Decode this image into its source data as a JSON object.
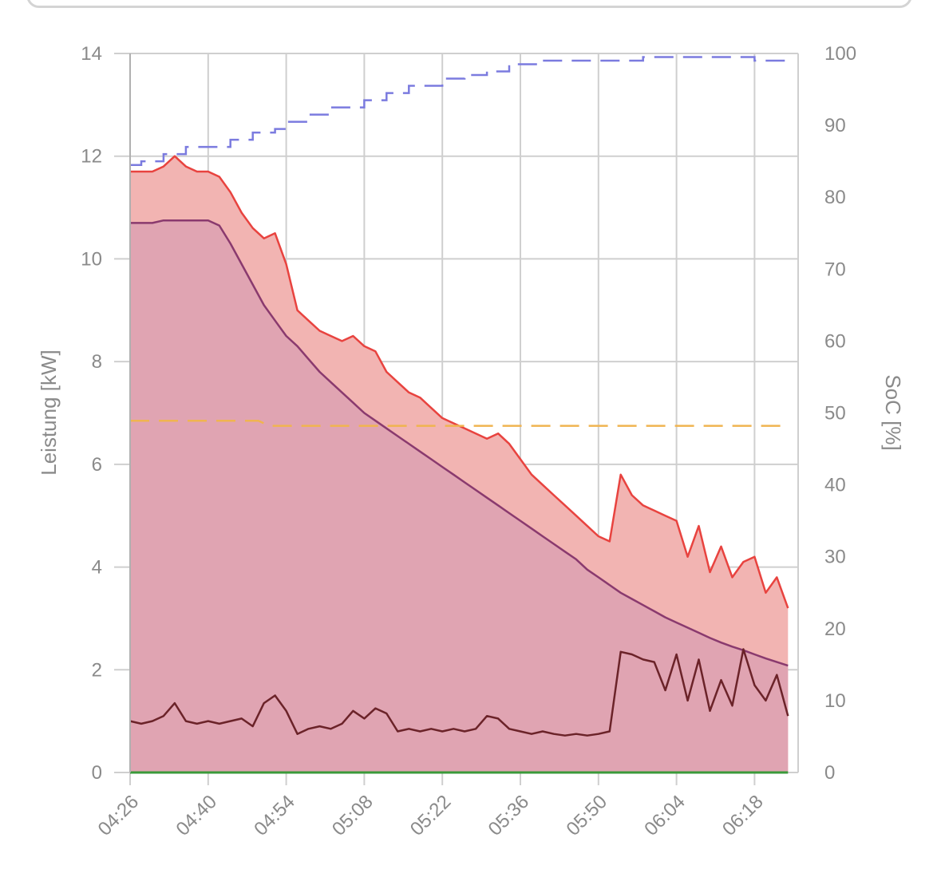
{
  "chart_data": {
    "type": "line",
    "title": "",
    "ylabel": "Leistung [kW]",
    "y2label": "SoC [%]",
    "ylim": [
      0,
      14
    ],
    "y2lim": [
      0,
      100
    ],
    "grid": true,
    "legend": "none",
    "x_ticks": [
      "04:26",
      "04:40",
      "04:54",
      "05:08",
      "05:22",
      "05:36",
      "05:50",
      "06:04",
      "06:18"
    ],
    "y_ticks": [
      "0",
      "2",
      "4",
      "6",
      "8",
      "10",
      "12",
      "14"
    ],
    "y2_ticks": [
      "0",
      "10",
      "20",
      "30",
      "40",
      "50",
      "60",
      "70",
      "80",
      "90",
      "100"
    ],
    "colors": {
      "total_line": "#e8433f",
      "total_fill": "#f2b4b2",
      "ev_line": "#8a3a6e",
      "ev_fill": "#e0a4b2",
      "base_line": "#6b2329",
      "soc_line": "#7b7bdf",
      "limit_line": "#f0b450",
      "zero_line": "#3a9a3a",
      "grid": "#cfcfcf"
    },
    "series": [
      {
        "key": "total",
        "axis": "left",
        "style": "area",
        "x": [
          "04:26",
          "04:28",
          "04:30",
          "04:32",
          "04:34",
          "04:36",
          "04:38",
          "04:40",
          "04:42",
          "04:44",
          "04:46",
          "04:48",
          "04:50",
          "04:52",
          "04:54",
          "04:56",
          "04:58",
          "05:00",
          "05:02",
          "05:04",
          "05:06",
          "05:08",
          "05:10",
          "05:12",
          "05:14",
          "05:16",
          "05:18",
          "05:20",
          "05:22",
          "05:24",
          "05:26",
          "05:28",
          "05:30",
          "05:32",
          "05:34",
          "05:36",
          "05:38",
          "05:40",
          "05:42",
          "05:44",
          "05:46",
          "05:48",
          "05:50",
          "05:52",
          "05:54",
          "05:56",
          "05:58",
          "06:00",
          "06:02",
          "06:04",
          "06:06",
          "06:08",
          "06:10",
          "06:12",
          "06:14",
          "06:16",
          "06:18",
          "06:20",
          "06:22",
          "06:24"
        ],
        "y": [
          11.7,
          11.7,
          11.7,
          11.8,
          12.0,
          11.8,
          11.7,
          11.7,
          11.6,
          11.3,
          10.9,
          10.6,
          10.4,
          10.5,
          9.9,
          9.0,
          8.8,
          8.6,
          8.5,
          8.4,
          8.5,
          8.3,
          8.2,
          7.8,
          7.6,
          7.4,
          7.3,
          7.1,
          6.9,
          6.8,
          6.7,
          6.6,
          6.5,
          6.6,
          6.4,
          6.1,
          5.8,
          5.6,
          5.4,
          5.2,
          5.0,
          4.8,
          4.6,
          4.5,
          5.8,
          5.4,
          5.2,
          5.1,
          5.0,
          4.9,
          4.2,
          4.8,
          3.9,
          4.4,
          3.8,
          4.1,
          4.2,
          3.5,
          3.8,
          3.2
        ]
      },
      {
        "key": "ev",
        "axis": "left",
        "style": "area",
        "x": [
          "04:26",
          "04:28",
          "04:30",
          "04:32",
          "04:34",
          "04:36",
          "04:38",
          "04:40",
          "04:42",
          "04:44",
          "04:46",
          "04:48",
          "04:50",
          "04:52",
          "04:54",
          "04:56",
          "04:58",
          "05:00",
          "05:02",
          "05:04",
          "05:06",
          "05:08",
          "05:10",
          "05:12",
          "05:14",
          "05:16",
          "05:18",
          "05:20",
          "05:22",
          "05:24",
          "05:26",
          "05:28",
          "05:30",
          "05:32",
          "05:34",
          "05:36",
          "05:38",
          "05:40",
          "05:42",
          "05:44",
          "05:46",
          "05:48",
          "05:50",
          "05:52",
          "05:54",
          "05:56",
          "05:58",
          "06:00",
          "06:02",
          "06:04",
          "06:06",
          "06:08",
          "06:10",
          "06:12",
          "06:14",
          "06:16",
          "06:18",
          "06:20",
          "06:22",
          "06:24"
        ],
        "y": [
          10.7,
          10.7,
          10.7,
          10.75,
          10.75,
          10.75,
          10.75,
          10.75,
          10.65,
          10.3,
          9.9,
          9.5,
          9.1,
          8.8,
          8.5,
          8.3,
          8.05,
          7.8,
          7.6,
          7.4,
          7.2,
          7.0,
          6.85,
          6.7,
          6.55,
          6.4,
          6.25,
          6.1,
          5.95,
          5.8,
          5.65,
          5.5,
          5.35,
          5.2,
          5.05,
          4.9,
          4.75,
          4.6,
          4.45,
          4.3,
          4.15,
          3.95,
          3.8,
          3.65,
          3.5,
          3.38,
          3.26,
          3.14,
          3.02,
          2.92,
          2.82,
          2.72,
          2.62,
          2.53,
          2.45,
          2.38,
          2.3,
          2.22,
          2.15,
          2.08
        ]
      },
      {
        "key": "base",
        "axis": "left",
        "style": "line",
        "x": [
          "04:26",
          "04:28",
          "04:30",
          "04:32",
          "04:34",
          "04:36",
          "04:38",
          "04:40",
          "04:42",
          "04:44",
          "04:46",
          "04:48",
          "04:50",
          "04:52",
          "04:54",
          "04:56",
          "04:58",
          "05:00",
          "05:02",
          "05:04",
          "05:06",
          "05:08",
          "05:10",
          "05:12",
          "05:14",
          "05:16",
          "05:18",
          "05:20",
          "05:22",
          "05:24",
          "05:26",
          "05:28",
          "05:30",
          "05:32",
          "05:34",
          "05:36",
          "05:38",
          "05:40",
          "05:42",
          "05:44",
          "05:46",
          "05:48",
          "05:50",
          "05:52",
          "05:54",
          "05:56",
          "05:58",
          "06:00",
          "06:02",
          "06:04",
          "06:06",
          "06:08",
          "06:10",
          "06:12",
          "06:14",
          "06:16",
          "06:18",
          "06:20",
          "06:22",
          "06:24"
        ],
        "y": [
          1.0,
          0.95,
          1.0,
          1.1,
          1.35,
          1.0,
          0.95,
          1.0,
          0.95,
          1.0,
          1.05,
          0.9,
          1.35,
          1.5,
          1.2,
          0.75,
          0.85,
          0.9,
          0.85,
          0.95,
          1.2,
          1.05,
          1.25,
          1.15,
          0.8,
          0.85,
          0.8,
          0.85,
          0.8,
          0.85,
          0.8,
          0.85,
          1.1,
          1.05,
          0.85,
          0.8,
          0.75,
          0.8,
          0.75,
          0.72,
          0.75,
          0.72,
          0.75,
          0.8,
          2.35,
          2.3,
          2.2,
          2.15,
          1.6,
          2.3,
          1.4,
          2.2,
          1.2,
          1.8,
          1.3,
          2.4,
          1.7,
          1.4,
          1.9,
          1.1
        ]
      },
      {
        "key": "soc",
        "axis": "right",
        "style": "dashed",
        "x": [
          "04:26",
          "04:28",
          "04:30",
          "04:32",
          "04:34",
          "04:36",
          "04:40",
          "04:44",
          "04:46",
          "04:48",
          "04:52",
          "04:54",
          "04:58",
          "05:02",
          "05:08",
          "05:12",
          "05:16",
          "05:22",
          "05:26",
          "05:30",
          "05:34",
          "05:40",
          "05:50",
          "05:58",
          "06:04",
          "06:18",
          "06:24"
        ],
        "y": [
          84.5,
          85,
          85,
          86,
          86,
          87,
          87,
          88,
          88,
          89,
          89.5,
          90.5,
          91.5,
          92.5,
          93.5,
          94.5,
          95.5,
          96.5,
          97,
          97.5,
          98.5,
          99,
          99,
          99.5,
          99.5,
          99,
          99
        ]
      },
      {
        "key": "limit",
        "axis": "left",
        "style": "dashed",
        "x": [
          "04:26",
          "04:49",
          "04:51",
          "06:24"
        ],
        "y": [
          6.85,
          6.85,
          6.75,
          6.75
        ]
      },
      {
        "key": "zero",
        "axis": "left",
        "style": "line",
        "x": [
          "04:26",
          "06:24"
        ],
        "y": [
          0,
          0
        ]
      }
    ]
  }
}
